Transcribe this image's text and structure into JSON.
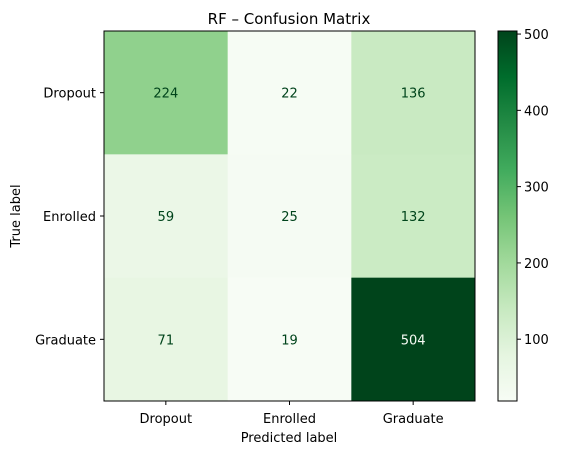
{
  "chart_data": {
    "type": "heatmap",
    "title": "RF – Confusion Matrix",
    "xlabel": "Predicted label",
    "ylabel": "True label",
    "x_categories": [
      "Dropout",
      "Enrolled",
      "Graduate"
    ],
    "y_categories": [
      "Dropout",
      "Enrolled",
      "Graduate"
    ],
    "values": [
      [
        224,
        22,
        136
      ],
      [
        59,
        25,
        132
      ],
      [
        71,
        19,
        504
      ]
    ],
    "colormap": "Greens",
    "color_range": [
      19,
      504
    ],
    "colorbar_ticks": [
      100,
      200,
      300,
      400,
      500
    ],
    "grid": false
  }
}
